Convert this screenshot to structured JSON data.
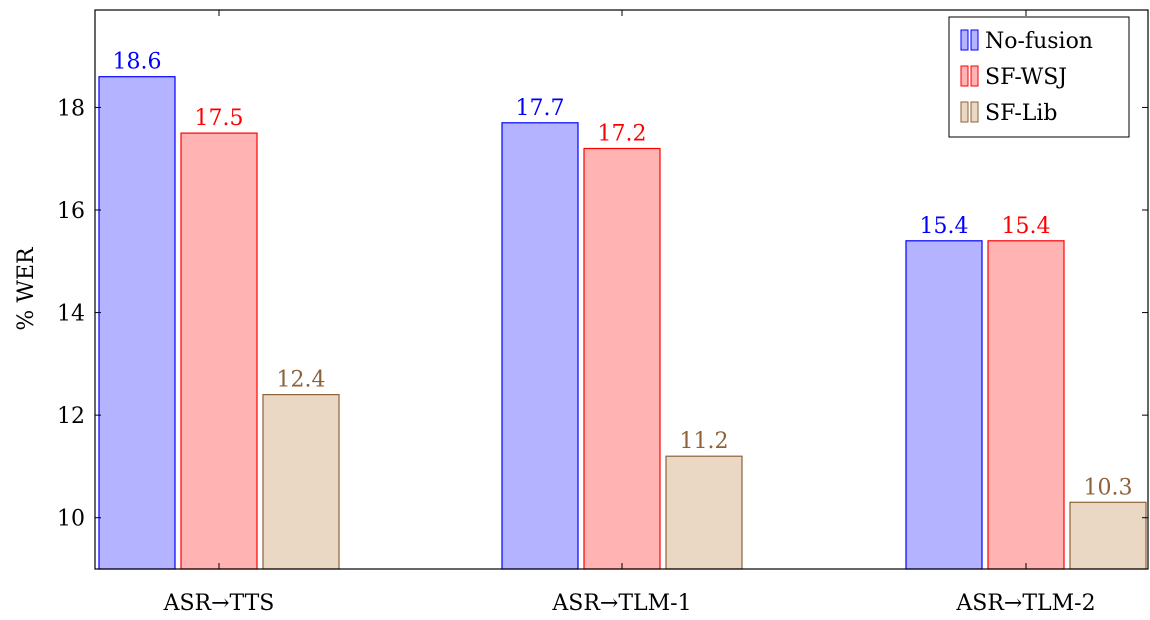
{
  "chart_data": {
    "type": "bar",
    "title": "",
    "xlabel": "",
    "ylabel": "% WER",
    "categories": [
      "ASR→TTS",
      "ASR→TLM-1",
      "ASR→TLM-2"
    ],
    "ylim": [
      9,
      19.9
    ],
    "yticks": [
      10,
      12,
      14,
      16,
      18
    ],
    "grid": false,
    "legend_position": "top-right",
    "series": [
      {
        "name": "No-fusion",
        "values": [
          18.6,
          17.7,
          15.4
        ],
        "fill": "#b3b3ff",
        "stroke": "#0000ff",
        "label_color": "#0000ff"
      },
      {
        "name": "SF-WSJ",
        "values": [
          17.5,
          17.2,
          15.4
        ],
        "fill": "#ffb3b3",
        "stroke": "#ff0000",
        "label_color": "#ff0000"
      },
      {
        "name": "SF-Lib",
        "values": [
          12.4,
          11.2,
          10.3
        ],
        "fill": "#ead8c5",
        "stroke": "#8c6239",
        "label_color": "#8c6239"
      }
    ]
  }
}
